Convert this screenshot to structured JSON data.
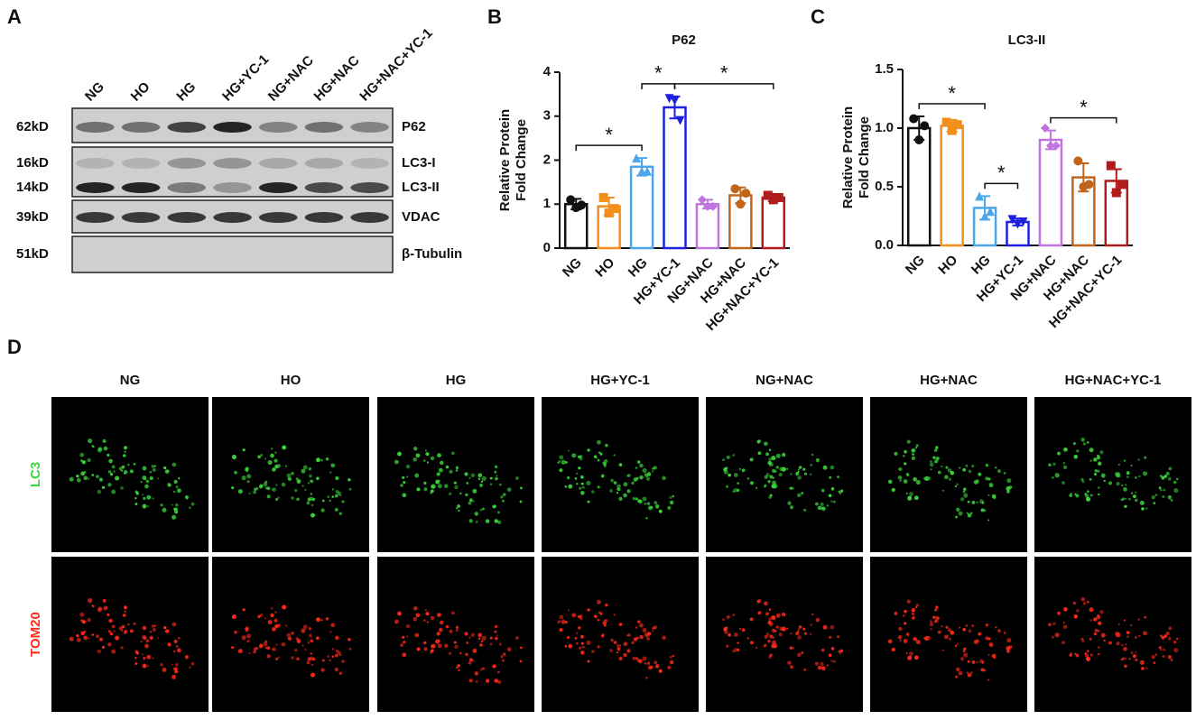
{
  "panels": {
    "a": "A",
    "b": "B",
    "c": "C",
    "d": "D"
  },
  "blot": {
    "lanes": [
      "NG",
      "HO",
      "HG",
      "HG+YC-1",
      "NG+NAC",
      "HG+NAC",
      "HG+NAC+YC-1"
    ],
    "rows": [
      {
        "markers": [
          "62kD"
        ],
        "labels": [
          "P62"
        ]
      },
      {
        "markers": [
          "16kD",
          "14kD"
        ],
        "labels": [
          "LC3-I",
          "LC3-II"
        ]
      },
      {
        "markers": [
          "39kD"
        ],
        "labels": [
          "VDAC"
        ]
      },
      {
        "markers": [
          "51kD"
        ],
        "labels": [
          "β-Tubulin"
        ]
      }
    ]
  },
  "chart_data": [
    {
      "type": "bar",
      "title": "P62",
      "ylabel": [
        "Relative Protein",
        "Fold Change"
      ],
      "categories": [
        "NG",
        "HO",
        "HG",
        "HG+YC-1",
        "NG+NAC",
        "HG+NAC",
        "HG+NAC+YC-1"
      ],
      "colors": [
        "#111111",
        "#f28e1c",
        "#4da6e8",
        "#1f1fe0",
        "#c074e0",
        "#c0661c",
        "#b01c1c"
      ],
      "values": [
        1.0,
        0.95,
        1.85,
        3.2,
        1.0,
        1.2,
        1.15
      ],
      "errors": [
        0.12,
        0.2,
        0.2,
        0.25,
        0.1,
        0.18,
        0.08
      ],
      "points": [
        [
          1.1,
          0.92,
          0.98
        ],
        [
          1.15,
          0.8,
          0.9
        ],
        [
          2.05,
          1.75,
          1.75
        ],
        [
          3.4,
          3.35,
          2.9
        ],
        [
          1.1,
          0.95,
          0.95
        ],
        [
          1.35,
          1.0,
          1.25
        ],
        [
          1.2,
          1.1,
          1.15
        ]
      ],
      "ylim": [
        0,
        4
      ],
      "yticks": [
        0,
        1,
        2,
        3,
        4
      ],
      "significance": [
        {
          "from": "NG",
          "to": "HG",
          "label": "*"
        },
        {
          "from": "HG",
          "to": "HG+YC-1",
          "label": "*"
        },
        {
          "from": "HG+YC-1",
          "to": "HG+NAC+YC-1",
          "label": "*"
        }
      ]
    },
    {
      "type": "bar",
      "title": "LC3-II",
      "ylabel": [
        "Relative Protein",
        "Fold Change"
      ],
      "categories": [
        "NG",
        "HO",
        "HG",
        "HG+YC-1",
        "NG+NAC",
        "HG+NAC",
        "HG+NAC+YC-1"
      ],
      "colors": [
        "#111111",
        "#f28e1c",
        "#4da6e8",
        "#1f1fe0",
        "#c074e0",
        "#c0661c",
        "#b01c1c"
      ],
      "values": [
        1.0,
        1.02,
        0.32,
        0.2,
        0.9,
        0.58,
        0.55
      ],
      "errors": [
        0.1,
        0.05,
        0.1,
        0.03,
        0.08,
        0.12,
        0.1
      ],
      "points": [
        [
          1.08,
          0.9,
          1.02
        ],
        [
          1.05,
          0.98,
          1.03
        ],
        [
          0.42,
          0.25,
          0.29
        ],
        [
          0.22,
          0.18,
          0.2
        ],
        [
          1.0,
          0.85,
          0.85
        ],
        [
          0.72,
          0.5,
          0.52
        ],
        [
          0.68,
          0.45,
          0.52
        ]
      ],
      "ylim": [
        0,
        1.5
      ],
      "yticks": [
        {
          "value": 0,
          "label": "0.0"
        },
        0.5,
        {
          "value": 1,
          "label": "1.0"
        },
        1.5
      ],
      "significance": [
        {
          "from": "NG",
          "to": "HG",
          "label": "*"
        },
        {
          "from": "HG",
          "to": "HG+YC-1",
          "label": "*"
        },
        {
          "from": "NG+NAC",
          "to": "HG+NAC+YC-1",
          "label": "*"
        }
      ]
    }
  ],
  "microscopy": {
    "columns": [
      "NG",
      "HO",
      "HG",
      "HG+YC-1",
      "NG+NAC",
      "HG+NAC",
      "HG+NAC+YC-1"
    ],
    "rows": [
      "LC3",
      "TOM20"
    ]
  }
}
